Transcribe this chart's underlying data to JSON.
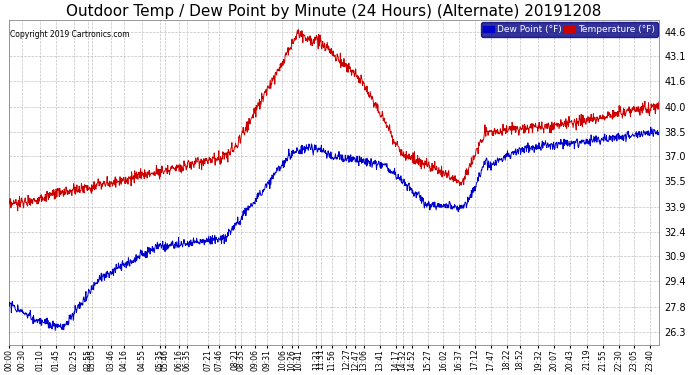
{
  "title": "Outdoor Temp / Dew Point by Minute (24 Hours) (Alternate) 20191208",
  "copyright": "Copyright 2019 Cartronics.com",
  "legend_labels": [
    "Dew Point (°F)",
    "Temperature (°F)"
  ],
  "legend_colors": [
    "#0000cc",
    "#cc0000"
  ],
  "yticks": [
    26.3,
    27.8,
    29.4,
    30.9,
    32.4,
    33.9,
    35.5,
    37.0,
    38.5,
    40.0,
    41.6,
    43.1,
    44.6
  ],
  "ylim": [
    25.5,
    45.3
  ],
  "bg_color": "#ffffff",
  "plot_bg_color": "#ffffff",
  "grid_color": "#bbbbbb",
  "temp_color": "#cc0000",
  "dew_color": "#0000cc",
  "title_fontsize": 11,
  "xtick_labels": [
    "00:00",
    "00:30",
    "01:10",
    "01:45",
    "02:25",
    "02:55",
    "03:05",
    "03:46",
    "04:16",
    "04:55",
    "05:35",
    "05:46",
    "06:16",
    "06:35",
    "07:21",
    "07:46",
    "08:21",
    "08:35",
    "09:06",
    "09:31",
    "10:06",
    "10:26",
    "10:41",
    "11:21",
    "11:31",
    "11:56",
    "12:27",
    "12:47",
    "13:06",
    "13:41",
    "14:17",
    "14:32",
    "14:52",
    "15:27",
    "16:02",
    "16:37",
    "17:12",
    "17:47",
    "18:22",
    "18:52",
    "19:32",
    "20:07",
    "20:43",
    "21:19",
    "21:55",
    "22:30",
    "23:05",
    "23:40"
  ]
}
